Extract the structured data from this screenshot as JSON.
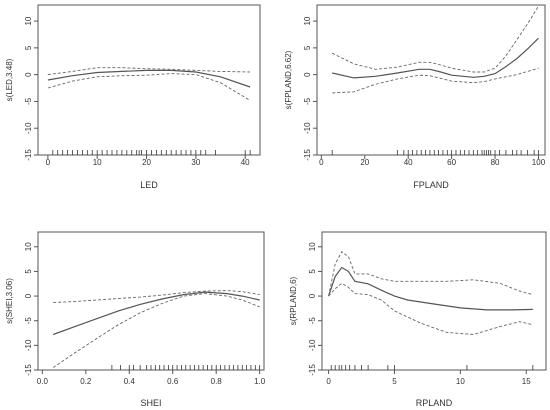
{
  "chart_data": [
    {
      "type": "line",
      "xlabel": "LED",
      "ylabel": "s(LED,3.48)",
      "xlim": [
        -2,
        43
      ],
      "ylim": [
        -15,
        13
      ],
      "xticks": [
        "0",
        "10",
        "20",
        "30",
        "40"
      ],
      "yticks": [
        "-15",
        "-10",
        "-5",
        "0",
        "5",
        "10"
      ],
      "series": [
        {
          "role": "fit",
          "points": [
            [
              0,
              -1.0
            ],
            [
              5,
              -0.2
            ],
            [
              10,
              0.4
            ],
            [
              15,
              0.6
            ],
            [
              20,
              0.8
            ],
            [
              25,
              0.8
            ],
            [
              30,
              0.5
            ],
            [
              35,
              -0.4
            ],
            [
              41,
              -2.3
            ]
          ]
        },
        {
          "role": "upper",
          "points": [
            [
              0,
              0.0
            ],
            [
              5,
              0.6
            ],
            [
              10,
              1.3
            ],
            [
              15,
              1.3
            ],
            [
              20,
              1.1
            ],
            [
              25,
              1.0
            ],
            [
              30,
              0.8
            ],
            [
              35,
              0.6
            ],
            [
              41,
              0.5
            ]
          ]
        },
        {
          "role": "lower",
          "points": [
            [
              0,
              -2.5
            ],
            [
              5,
              -1.2
            ],
            [
              10,
              -0.4
            ],
            [
              15,
              -0.2
            ],
            [
              20,
              -0.1
            ],
            [
              25,
              0.2
            ],
            [
              30,
              0.0
            ],
            [
              35,
              -1.5
            ],
            [
              41,
              -4.8
            ]
          ]
        }
      ],
      "rug": [
        1,
        2,
        3,
        4,
        5,
        6,
        7,
        8,
        9,
        10,
        11,
        12,
        13,
        14,
        15,
        16,
        17,
        18,
        18.5,
        19,
        20,
        21,
        22,
        23,
        24,
        25,
        26,
        27,
        28,
        29,
        30,
        31,
        32,
        34,
        40,
        41
      ]
    },
    {
      "type": "line",
      "xlabel": "FPLAND",
      "ylabel": "s(FPLAND,6.62)",
      "xlim": [
        -2,
        103
      ],
      "ylim": [
        -15,
        13
      ],
      "xticks": [
        "0",
        "20",
        "40",
        "60",
        "80",
        "100"
      ],
      "yticks": [
        "-15",
        "-10",
        "-5",
        "0",
        "5",
        "10"
      ],
      "series": [
        {
          "role": "fit",
          "points": [
            [
              5,
              0.3
            ],
            [
              15,
              -0.6
            ],
            [
              25,
              -0.3
            ],
            [
              35,
              0.3
            ],
            [
              45,
              1.0
            ],
            [
              50,
              1.0
            ],
            [
              55,
              0.5
            ],
            [
              60,
              -0.1
            ],
            [
              70,
              -0.5
            ],
            [
              75,
              -0.3
            ],
            [
              80,
              0.2
            ],
            [
              85,
              1.5
            ],
            [
              90,
              3.0
            ],
            [
              95,
              4.8
            ],
            [
              100,
              6.8
            ]
          ]
        },
        {
          "role": "upper",
          "points": [
            [
              5,
              4.0
            ],
            [
              15,
              2.0
            ],
            [
              25,
              1.0
            ],
            [
              35,
              1.4
            ],
            [
              45,
              2.3
            ],
            [
              50,
              2.3
            ],
            [
              55,
              1.8
            ],
            [
              60,
              1.2
            ],
            [
              70,
              0.5
            ],
            [
              75,
              0.5
            ],
            [
              80,
              1.2
            ],
            [
              85,
              3.5
            ],
            [
              90,
              6.5
            ],
            [
              95,
              9.5
            ],
            [
              100,
              12.8
            ]
          ]
        },
        {
          "role": "lower",
          "points": [
            [
              5,
              -3.4
            ],
            [
              15,
              -3.2
            ],
            [
              25,
              -1.8
            ],
            [
              35,
              -0.8
            ],
            [
              45,
              -0.1
            ],
            [
              50,
              -0.2
            ],
            [
              55,
              -0.7
            ],
            [
              60,
              -1.2
            ],
            [
              70,
              -1.5
            ],
            [
              75,
              -1.3
            ],
            [
              80,
              -0.8
            ],
            [
              85,
              -0.4
            ],
            [
              90,
              0.0
            ],
            [
              95,
              0.6
            ],
            [
              100,
              1.2
            ]
          ]
        }
      ],
      "rug": [
        5,
        35,
        38,
        40,
        42,
        44,
        46,
        48,
        50,
        52,
        54,
        56,
        58,
        60,
        62,
        64,
        66,
        68,
        70,
        72,
        74,
        75,
        76,
        77,
        78,
        80,
        82,
        85,
        88,
        90,
        92,
        95,
        98,
        100
      ]
    },
    {
      "type": "line",
      "xlabel": "SHEI",
      "ylabel": "s(SHEI,3.06)",
      "xlim": [
        -0.02,
        1.02
      ],
      "ylim": [
        -15,
        13
      ],
      "xticks": [
        "0.0",
        "0.2",
        "0.4",
        "0.6",
        "0.8",
        "1.0"
      ],
      "yticks": [
        "-15",
        "-10",
        "-5",
        "0",
        "5",
        "10"
      ],
      "series": [
        {
          "role": "fit",
          "points": [
            [
              0.05,
              -7.8
            ],
            [
              0.15,
              -6.2
            ],
            [
              0.25,
              -4.6
            ],
            [
              0.35,
              -3.0
            ],
            [
              0.45,
              -1.7
            ],
            [
              0.55,
              -0.6
            ],
            [
              0.65,
              0.3
            ],
            [
              0.75,
              0.8
            ],
            [
              0.85,
              0.5
            ],
            [
              0.92,
              0.0
            ],
            [
              1.0,
              -0.8
            ]
          ]
        },
        {
          "role": "upper",
          "points": [
            [
              0.05,
              -1.3
            ],
            [
              0.15,
              -1.1
            ],
            [
              0.25,
              -0.8
            ],
            [
              0.35,
              -0.5
            ],
            [
              0.45,
              -0.2
            ],
            [
              0.55,
              0.2
            ],
            [
              0.65,
              0.7
            ],
            [
              0.75,
              1.0
            ],
            [
              0.85,
              1.1
            ],
            [
              0.92,
              0.9
            ],
            [
              1.0,
              0.3
            ]
          ]
        },
        {
          "role": "lower",
          "points": [
            [
              0.05,
              -14.5
            ],
            [
              0.15,
              -11.5
            ],
            [
              0.25,
              -8.6
            ],
            [
              0.35,
              -5.8
            ],
            [
              0.45,
              -3.4
            ],
            [
              0.55,
              -1.5
            ],
            [
              0.65,
              0.0
            ],
            [
              0.75,
              0.5
            ],
            [
              0.85,
              0.0
            ],
            [
              0.92,
              -0.8
            ],
            [
              1.0,
              -2.2
            ]
          ]
        }
      ],
      "rug": [
        0.32,
        0.36,
        0.4,
        0.42,
        0.45,
        0.48,
        0.5,
        0.52,
        0.54,
        0.56,
        0.58,
        0.6,
        0.62,
        0.64,
        0.66,
        0.68,
        0.7,
        0.72,
        0.74,
        0.76,
        0.78,
        0.8,
        0.82,
        0.84,
        0.86,
        0.88,
        0.9,
        0.92,
        0.94,
        0.96,
        0.98,
        1.0
      ]
    },
    {
      "type": "line",
      "xlabel": "RPLAND",
      "ylabel": "s(RPLAND,6)",
      "xlim": [
        -0.5,
        16.5
      ],
      "ylim": [
        -15,
        13
      ],
      "xticks": [
        "0",
        "5",
        "10",
        "15"
      ],
      "yticks": [
        "-15",
        "-10",
        "-5",
        "0",
        "5",
        "10"
      ],
      "series": [
        {
          "role": "fit",
          "points": [
            [
              0,
              0.0
            ],
            [
              0.5,
              4.0
            ],
            [
              1,
              5.8
            ],
            [
              1.5,
              5.0
            ],
            [
              2,
              3.0
            ],
            [
              3,
              2.5
            ],
            [
              4,
              1.2
            ],
            [
              5,
              0.0
            ],
            [
              6,
              -0.8
            ],
            [
              8,
              -1.6
            ],
            [
              10,
              -2.4
            ],
            [
              12,
              -2.8
            ],
            [
              14,
              -2.8
            ],
            [
              15.5,
              -2.7
            ]
          ]
        },
        {
          "role": "upper",
          "points": [
            [
              0,
              0.0
            ],
            [
              0.5,
              6.5
            ],
            [
              1,
              9.0
            ],
            [
              1.5,
              8.0
            ],
            [
              2,
              4.5
            ],
            [
              3,
              4.5
            ],
            [
              4,
              3.5
            ],
            [
              5,
              3.0
            ],
            [
              7,
              3.0
            ],
            [
              9,
              3.0
            ],
            [
              11,
              3.3
            ],
            [
              13,
              2.6
            ],
            [
              14.5,
              1.0
            ],
            [
              15.5,
              0.3
            ]
          ]
        },
        {
          "role": "lower",
          "points": [
            [
              0,
              0.0
            ],
            [
              0.5,
              1.5
            ],
            [
              1,
              2.6
            ],
            [
              1.5,
              1.8
            ],
            [
              2,
              0.5
            ],
            [
              3,
              0.3
            ],
            [
              4,
              -0.8
            ],
            [
              5,
              -3.0
            ],
            [
              7,
              -5.5
            ],
            [
              9,
              -7.4
            ],
            [
              11,
              -7.8
            ],
            [
              13,
              -6.2
            ],
            [
              14.5,
              -5.2
            ],
            [
              15.5,
              -5.8
            ]
          ]
        }
      ],
      "rug": [
        0.2,
        0.5,
        0.8,
        1.0,
        1.3,
        1.6,
        2.0,
        2.5,
        3.0,
        4.5,
        5.0,
        10.5,
        15.5
      ]
    }
  ]
}
